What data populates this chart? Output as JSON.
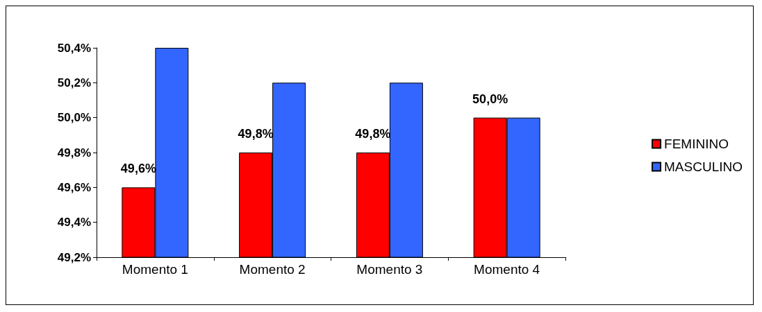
{
  "chart_data": {
    "type": "bar",
    "categories": [
      "Momento 1",
      "Momento 2",
      "Momento 3",
      "Momento 4"
    ],
    "series": [
      {
        "name": "FEMININO",
        "color": "#ff0000",
        "values": [
          49.6,
          49.8,
          49.8,
          50.0
        ],
        "value_labels": [
          "49,6%",
          "49,8%",
          "49,8%",
          "50,0%"
        ]
      },
      {
        "name": "MASCULINO",
        "color": "#3366ff",
        "values": [
          50.4,
          50.2,
          50.2,
          50.0
        ]
      }
    ],
    "ylim": [
      49.2,
      50.4
    ],
    "yticks": [
      {
        "value": 49.2,
        "label": "49,2%"
      },
      {
        "value": 49.4,
        "label": "49,4%"
      },
      {
        "value": 49.6,
        "label": "49,6%"
      },
      {
        "value": 49.8,
        "label": "49,8%"
      },
      {
        "value": 50.0,
        "label": "50,0%"
      },
      {
        "value": 50.2,
        "label": "50,2%"
      },
      {
        "value": 50.4,
        "label": "50,4%"
      }
    ],
    "grid": false,
    "legend": "right"
  }
}
